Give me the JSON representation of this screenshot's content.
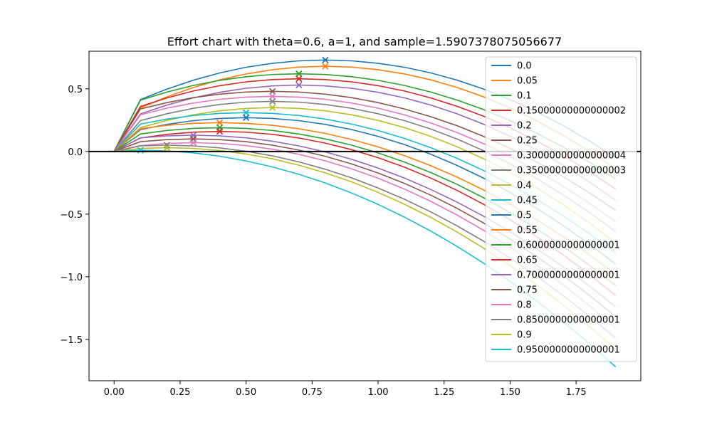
{
  "chart_data": {
    "type": "line",
    "title": "Effort chart with theta=0.6, a=1, and sample=1.5907378075056677",
    "xlabel": "",
    "ylabel": "",
    "xlim": [
      -0.095,
      1.995
    ],
    "ylim": [
      -1.83,
      0.8
    ],
    "x": [
      0,
      0.1,
      0.2,
      0.3,
      0.4,
      0.5,
      0.6,
      0.7,
      0.8,
      0.9,
      1.0,
      1.1,
      1.2,
      1.3,
      1.4,
      1.5,
      1.6,
      1.7,
      1.8,
      1.9
    ],
    "x_ticks": [
      0.0,
      0.25,
      0.5,
      0.75,
      1.0,
      1.25,
      1.5,
      1.75
    ],
    "x_tick_labels": [
      "0.00",
      "0.25",
      "0.50",
      "0.75",
      "1.00",
      "1.25",
      "1.50",
      "1.75"
    ],
    "y_ticks": [
      0.5,
      0.0,
      -0.5,
      -1.0,
      -1.5
    ],
    "y_tick_labels": [
      "0.5",
      "0.0",
      "−0.5",
      "−1.0",
      "−1.5"
    ],
    "horizontal_line": 0,
    "grid": false,
    "legend_position": "top-right",
    "series": [
      {
        "name": "0.0",
        "color": "#1f77b4",
        "peak_x": 0.8,
        "peak_y": 0.73,
        "end_y": -0.05
      },
      {
        "name": "0.05",
        "color": "#ff7f0e",
        "peak_x": 0.8,
        "peak_y": 0.68,
        "end_y": -0.14
      },
      {
        "name": "0.1",
        "color": "#2ca02c",
        "peak_x": 0.7,
        "peak_y": 0.62,
        "end_y": -0.22
      },
      {
        "name": "0.15000000000000002",
        "color": "#d62728",
        "peak_x": 0.7,
        "peak_y": 0.58,
        "end_y": -0.3
      },
      {
        "name": "0.2",
        "color": "#9467bd",
        "peak_x": 0.7,
        "peak_y": 0.53,
        "end_y": -0.39
      },
      {
        "name": "0.25",
        "color": "#8c564b",
        "peak_x": 0.6,
        "peak_y": 0.48,
        "end_y": -0.47
      },
      {
        "name": "0.30000000000000004",
        "color": "#e377c2",
        "peak_x": 0.6,
        "peak_y": 0.44,
        "end_y": -0.56
      },
      {
        "name": "0.35000000000000003",
        "color": "#7f7f7f",
        "peak_x": 0.6,
        "peak_y": 0.4,
        "end_y": -0.64
      },
      {
        "name": "0.4",
        "color": "#bcbd22",
        "peak_x": 0.6,
        "peak_y": 0.35,
        "end_y": -0.73
      },
      {
        "name": "0.45",
        "color": "#17becf",
        "peak_x": 0.5,
        "peak_y": 0.31,
        "end_y": -0.81
      },
      {
        "name": "0.5",
        "color": "#1f77b4",
        "peak_x": 0.5,
        "peak_y": 0.27,
        "end_y": -0.9
      },
      {
        "name": "0.55",
        "color": "#ff7f0e",
        "peak_x": 0.4,
        "peak_y": 0.23,
        "end_y": -0.98
      },
      {
        "name": "0.6000000000000001",
        "color": "#2ca02c",
        "peak_x": 0.4,
        "peak_y": 0.19,
        "end_y": -1.07
      },
      {
        "name": "0.65",
        "color": "#d62728",
        "peak_x": 0.4,
        "peak_y": 0.16,
        "end_y": -1.15
      },
      {
        "name": "0.7000000000000001",
        "color": "#9467bd",
        "peak_x": 0.3,
        "peak_y": 0.13,
        "end_y": -1.24
      },
      {
        "name": "0.75",
        "color": "#8c564b",
        "peak_x": 0.3,
        "peak_y": 0.1,
        "end_y": -1.32
      },
      {
        "name": "0.8",
        "color": "#e377c2",
        "peak_x": 0.3,
        "peak_y": 0.07,
        "end_y": -1.41
      },
      {
        "name": "0.8500000000000001",
        "color": "#7f7f7f",
        "peak_x": 0.2,
        "peak_y": 0.05,
        "end_y": -1.49
      },
      {
        "name": "0.9",
        "color": "#bcbd22",
        "peak_x": 0.2,
        "peak_y": 0.03,
        "end_y": -1.58
      },
      {
        "name": "0.9500000000000001",
        "color": "#17becf",
        "peak_x": 0.1,
        "peak_y": 0.01,
        "end_y": -1.72
      }
    ]
  }
}
